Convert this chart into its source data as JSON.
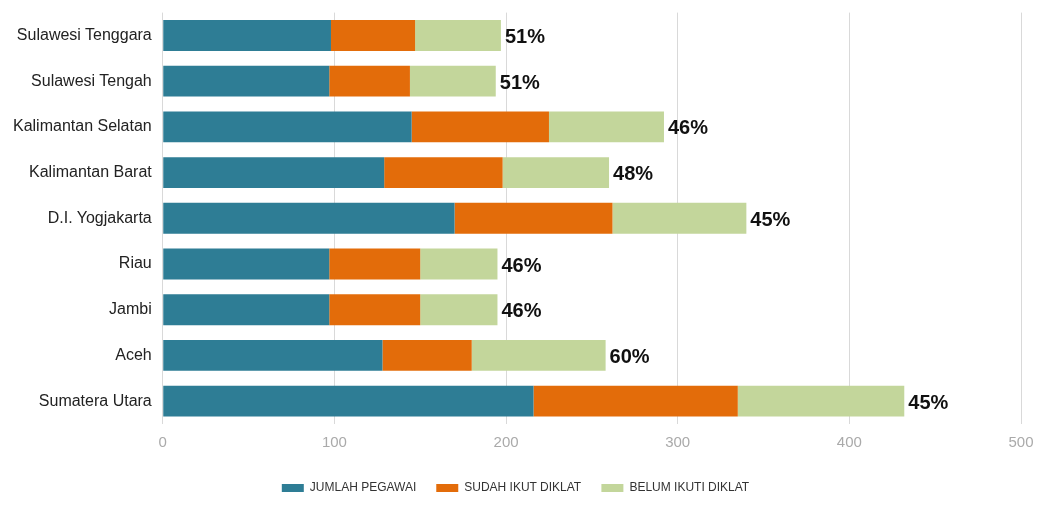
{
  "chart_data": {
    "type": "bar",
    "orientation": "horizontal",
    "stacked": true,
    "categories": [
      "Sulawesi Tenggara",
      "Sulawesi Tengah",
      "Kalimantan Selatan",
      "Kalimantan Barat",
      "D.I. Yogjakarta",
      "Riau",
      "Jambi",
      "Aceh",
      "Sumatera Utara"
    ],
    "series": [
      {
        "name": "JUMLAH PEGAWAI",
        "color": "#2e7d95",
        "values": [
          98,
          97,
          145,
          129,
          170,
          97,
          97,
          128,
          216
        ]
      },
      {
        "name": "SUDAH IKUT DIKLAT",
        "color": "#e36c0a",
        "values": [
          49,
          47,
          80,
          69,
          92,
          53,
          53,
          52,
          119
        ]
      },
      {
        "name": "BELUM IKUTI DIKLAT",
        "color": "#c3d69b",
        "values": [
          50,
          50,
          67,
          62,
          78,
          45,
          45,
          78,
          97
        ]
      }
    ],
    "xlim": [
      0,
      500
    ],
    "xticks": [
      0,
      100,
      200,
      300,
      400,
      500
    ],
    "grid": "x",
    "legend": "bottom",
    "annotations": [
      {
        "text": "51%",
        "x": 197,
        "y": "Sulawesi Tenggara"
      },
      {
        "text": "51%",
        "x": 194,
        "y": "Sulawesi Tengah"
      },
      {
        "text": "46%",
        "x": 292,
        "y": "Kalimantan Selatan"
      },
      {
        "text": "48%",
        "x": 260,
        "y": "Kalimantan Barat"
      },
      {
        "text": "45%",
        "x": 340,
        "y": "D.I. Yogjakarta"
      },
      {
        "text": "46%",
        "x": 195,
        "y": "Riau"
      },
      {
        "text": "46%",
        "x": 195,
        "y": "Jambi"
      },
      {
        "text": "60%",
        "x": 258,
        "y": "Aceh"
      },
      {
        "text": "45%",
        "x": 432,
        "y": "Sumatera Utara"
      }
    ]
  }
}
